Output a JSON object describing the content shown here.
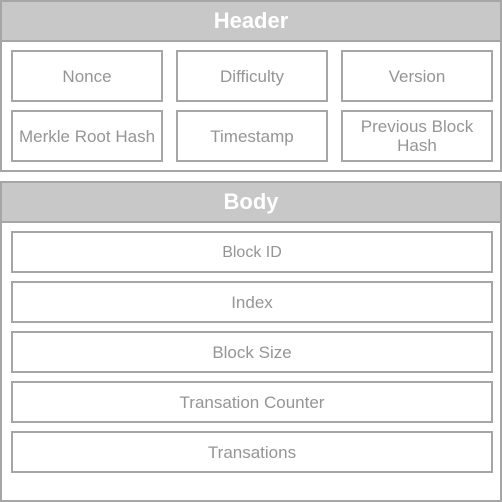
{
  "header": {
    "title": "Header",
    "fields": [
      "Nonce",
      "Difficulty",
      "Version",
      "Merkle Root Hash",
      "Timestamp",
      "Previous Block Hash"
    ]
  },
  "body": {
    "title": "Body",
    "fields": [
      "Block ID",
      "Index",
      "Block Size",
      "Transation Counter",
      "Transations"
    ]
  },
  "colors": {
    "title_bar": "#c8c8c8",
    "border": "#a6a6a6",
    "field_text": "#959595",
    "title_text": "#ffffff"
  }
}
